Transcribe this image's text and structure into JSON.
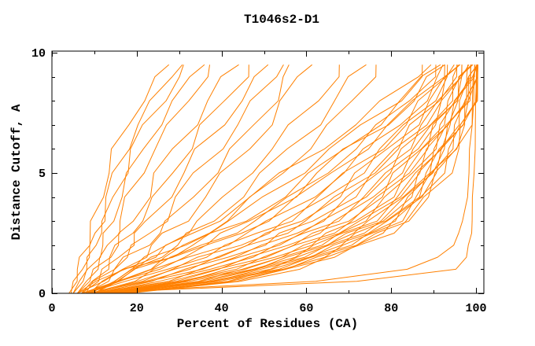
{
  "chart_data": {
    "type": "line",
    "title": "T1046s2-D1",
    "xlabel": "Percent of Residues (CA)",
    "ylabel": "Distance Cutoff, A",
    "xlim": [
      0,
      101.8
    ],
    "ylim": [
      0,
      10.07
    ],
    "x_major_ticks": [
      0,
      20,
      40,
      60,
      80,
      100
    ],
    "x_minor_ticks": [
      10,
      30,
      50,
      70,
      90
    ],
    "y_major_ticks": [
      0,
      5,
      10
    ],
    "y_minor_ticks": [
      1,
      2,
      3,
      4,
      6,
      7,
      8,
      9
    ],
    "grid": false,
    "legend": "none",
    "line_color": "#ff8000",
    "axis_color": "#000000",
    "background_color": "#ffffff",
    "cutoff_levels": [
      0,
      0.5,
      1,
      1.5,
      2,
      2.5,
      3,
      4,
      5,
      6,
      7,
      8,
      9,
      9.5
    ],
    "series_groups": [
      {
        "name": "poor-models-left",
        "wiggle": 1.0,
        "curves": [
          [
            4,
            5,
            6,
            7,
            8,
            9,
            10,
            11.5,
            13,
            15,
            18,
            21,
            25,
            28
          ],
          [
            4.5,
            6,
            7,
            8,
            9.5,
            10.5,
            11.5,
            13,
            15,
            17.5,
            20,
            24,
            28,
            30
          ],
          [
            5,
            6.5,
            8,
            9,
            10,
            11,
            12.5,
            14.5,
            17,
            19,
            22,
            26,
            30,
            32
          ],
          [
            5,
            7,
            9,
            10.5,
            12,
            13,
            14,
            16,
            18.5,
            21.5,
            25,
            29,
            33,
            35
          ],
          [
            6,
            8,
            10,
            12,
            13.5,
            15,
            16,
            18,
            21,
            24,
            28,
            32,
            36,
            38
          ]
        ]
      },
      {
        "name": "mid-models",
        "wiggle": 1.4,
        "curves": [
          [
            6,
            9,
            11,
            13,
            15,
            17,
            19,
            22,
            25,
            29,
            33,
            37,
            41,
            43
          ],
          [
            7,
            10,
            12,
            14,
            16,
            18,
            21,
            25,
            28,
            32,
            36,
            41,
            45,
            47
          ],
          [
            7,
            10,
            13,
            16,
            18,
            20,
            23,
            27,
            31,
            35,
            40,
            44,
            49,
            51
          ],
          [
            8,
            11,
            14,
            17,
            20,
            23,
            26,
            30,
            34,
            39,
            44,
            48,
            52,
            54
          ],
          [
            8,
            12,
            15,
            18,
            22,
            25,
            28,
            33,
            38,
            43,
            48,
            52,
            55,
            57
          ],
          [
            9,
            13,
            17,
            21,
            24,
            27,
            31,
            36,
            41,
            46,
            51,
            55,
            58,
            60
          ],
          [
            9,
            14,
            18,
            23,
            27,
            31,
            35,
            41,
            46,
            52,
            57,
            62,
            67,
            69
          ],
          [
            10,
            15,
            20,
            25,
            29,
            33,
            38,
            44,
            50,
            56,
            62,
            67,
            71,
            73
          ],
          [
            10,
            16,
            22,
            27,
            32,
            36,
            41,
            48,
            54,
            60,
            66,
            71,
            75,
            77
          ]
        ]
      },
      {
        "name": "main-bundle",
        "wiggle": 1.7,
        "curves": [
          [
            6,
            12,
            17,
            23,
            28,
            34,
            38,
            47,
            55,
            63,
            71,
            79,
            86,
            88
          ],
          [
            7,
            14,
            19,
            25,
            31,
            36,
            43,
            50,
            58,
            66,
            74,
            81,
            87,
            89
          ],
          [
            6,
            13,
            18,
            27,
            33,
            39,
            45,
            54,
            62,
            69,
            76,
            83,
            88,
            90
          ],
          [
            8,
            16,
            22,
            29,
            36,
            42,
            48,
            57,
            64,
            71,
            78,
            84,
            89,
            91
          ],
          [
            7,
            15,
            21,
            28,
            35,
            41,
            47,
            56,
            63,
            70,
            78,
            85,
            90,
            92
          ],
          [
            8,
            17,
            24,
            31,
            38,
            44,
            50,
            59,
            66,
            73,
            80,
            86,
            91,
            92.5
          ],
          [
            9,
            18,
            25,
            33,
            40,
            46,
            52,
            61,
            68,
            75,
            82,
            87,
            92,
            93
          ],
          [
            8,
            19,
            27,
            35,
            42,
            49,
            55,
            63,
            70,
            77,
            83,
            88,
            92.5,
            93.5
          ],
          [
            9,
            20,
            28,
            36,
            44,
            50,
            56,
            65,
            72,
            78,
            84,
            89,
            93,
            94
          ],
          [
            10,
            21,
            30,
            38,
            46,
            52,
            58,
            67,
            73,
            79,
            85,
            90,
            93.5,
            94.5
          ],
          [
            9,
            22,
            31,
            40,
            47,
            54,
            60,
            68,
            75,
            81,
            86,
            91,
            94,
            95
          ],
          [
            10,
            23,
            33,
            41,
            49,
            55,
            62,
            70,
            76,
            82,
            87,
            91.5,
            94.5,
            95.5
          ],
          [
            11,
            24,
            34,
            43,
            51,
            57,
            63,
            71,
            77,
            83,
            88,
            92,
            95,
            96
          ],
          [
            10,
            26,
            36,
            45,
            52,
            59,
            65,
            73,
            79,
            84,
            89,
            93,
            95.5,
            96.5
          ],
          [
            11,
            27,
            37,
            46,
            54,
            60,
            66,
            74,
            80,
            85,
            90,
            93.5,
            96,
            97
          ],
          [
            12,
            28,
            39,
            48,
            55,
            62,
            68,
            76,
            81,
            86,
            90.5,
            94,
            96.5,
            97.3
          ],
          [
            11,
            29,
            40,
            49,
            57,
            63,
            69,
            77,
            82,
            87,
            91,
            94.5,
            97,
            97.6
          ],
          [
            12,
            30,
            42,
            51,
            58,
            65,
            71,
            78,
            83,
            88,
            91.5,
            95,
            97.3,
            98
          ],
          [
            13,
            31,
            43,
            52,
            60,
            66,
            72,
            79,
            84,
            88.5,
            92,
            95.5,
            97.6,
            98.2
          ],
          [
            12,
            32,
            44,
            54,
            61,
            67,
            73,
            80,
            85,
            89,
            92.5,
            96,
            98,
            98.5
          ],
          [
            13,
            33,
            46,
            55,
            62,
            68,
            74,
            81,
            86,
            90,
            93,
            96.3,
            98.2,
            98.7
          ],
          [
            14,
            34,
            47,
            56,
            63,
            69,
            75,
            82,
            87,
            90.5,
            93.5,
            96.6,
            98.5,
            99
          ],
          [
            13,
            35,
            48,
            57,
            64,
            70,
            76,
            83,
            87.5,
            91,
            94,
            97,
            98.7,
            99.2
          ],
          [
            14,
            36,
            49,
            58,
            65,
            71,
            77,
            84,
            88,
            91.5,
            94.5,
            97.3,
            99,
            99.4
          ],
          [
            15,
            37,
            50,
            59,
            66,
            72,
            78,
            84.5,
            88.5,
            92,
            95,
            97.6,
            99.2,
            99.6
          ],
          [
            14,
            38,
            51,
            60,
            67,
            73,
            79,
            85,
            89,
            92.5,
            95.5,
            98,
            99.4,
            99.8
          ],
          [
            15,
            39,
            52,
            61,
            68,
            74,
            80,
            85.5,
            89.5,
            93,
            96,
            98.3,
            99.6,
            100
          ],
          [
            16,
            40,
            53,
            62,
            69,
            75,
            80.5,
            86,
            90,
            93.5,
            96.5,
            98.6,
            99.8,
            100
          ],
          [
            15,
            41,
            54,
            63,
            70,
            76,
            81,
            86.5,
            90.5,
            94,
            97,
            98.8,
            100,
            100
          ],
          [
            16,
            42,
            55,
            64,
            71,
            77,
            82,
            87,
            91,
            94.5,
            97.3,
            99,
            100,
            100
          ],
          [
            17,
            43,
            56,
            65,
            72,
            78,
            83,
            88,
            92,
            95,
            97.6,
            99.3,
            100,
            100
          ],
          [
            18,
            44,
            57,
            66,
            73,
            79,
            84,
            89,
            93,
            95.5,
            98,
            99.5,
            100,
            100
          ]
        ]
      },
      {
        "name": "best-models-low-right",
        "wiggle": 0.25,
        "curves": [
          [
            8,
            72,
            95,
            97.8,
            98.4,
            98.8,
            99,
            99.3,
            99.5,
            99.6,
            99.7,
            99.8,
            99.9,
            100
          ],
          [
            7,
            62,
            84,
            91,
            94.5,
            96,
            97,
            97.8,
            98.3,
            98.7,
            99,
            99.3,
            99.6,
            99.8
          ]
        ]
      }
    ]
  }
}
